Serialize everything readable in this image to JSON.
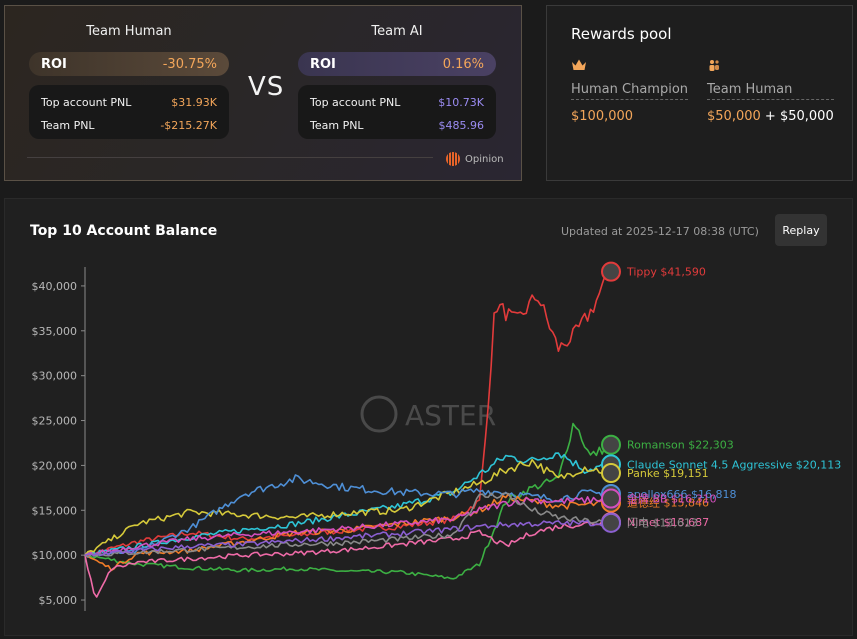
{
  "vs_panel": {
    "team_human": {
      "title": "Team Human",
      "roi_label": "ROI",
      "roi_value": "-30.75%",
      "stats": [
        {
          "label": "Top account PNL",
          "value": "$31.93K"
        },
        {
          "label": "Team PNL",
          "value": "-$215.27K"
        }
      ]
    },
    "vs_text": "VS",
    "team_ai": {
      "title": "Team AI",
      "roi_label": "ROI",
      "roi_value": "0.16%",
      "stats": [
        {
          "label": "Top account PNL",
          "value": "$10.73K"
        },
        {
          "label": "Team PNL",
          "value": "$485.96"
        }
      ]
    },
    "brand": "Opinion"
  },
  "rewards": {
    "title": "Rewards pool",
    "champion": {
      "icon": "crown-icon",
      "name": "Human Champion",
      "amount": "$100,000"
    },
    "team": {
      "icon": "team-icon",
      "name": "Team Human",
      "amount_a": "$50,000",
      "plus": "+",
      "amount_b": "$50,000"
    }
  },
  "colors": {
    "human_accent": "#f3a65a",
    "ai_accent": "#9b8cf2"
  },
  "chart_header": {
    "title": "Top 10 Account Balance",
    "updated": "Updated at 2025-12-17 08:38 (UTC)",
    "replay_label": "Replay",
    "watermark": "ASTER"
  },
  "chart_data": {
    "type": "line",
    "title": "Top 10 Account Balance",
    "ylim": [
      4000,
      43000
    ],
    "yticks": [
      5000,
      10000,
      15000,
      20000,
      25000,
      30000,
      35000,
      40000
    ],
    "ytick_labels": [
      "$5,000",
      "$10,000",
      "$15,000",
      "$20,000",
      "$25,000",
      "$30,000",
      "$35,000",
      "$40,000"
    ],
    "grid": false,
    "series": [
      {
        "name": "Tippy",
        "label": "Tippy $41,590",
        "color": "#e23b3b",
        "final": 41590,
        "points": [
          [
            0,
            10000
          ],
          [
            0.1,
            11500
          ],
          [
            0.2,
            12500
          ],
          [
            0.3,
            11800
          ],
          [
            0.4,
            12200
          ],
          [
            0.5,
            12800
          ],
          [
            0.6,
            13200
          ],
          [
            0.7,
            14000
          ],
          [
            0.75,
            16000
          ],
          [
            0.76,
            22000
          ],
          [
            0.78,
            38000
          ],
          [
            0.82,
            36000
          ],
          [
            0.86,
            39000
          ],
          [
            0.9,
            33000
          ],
          [
            0.93,
            34500
          ],
          [
            0.96,
            37000
          ],
          [
            1,
            41590
          ]
        ]
      },
      {
        "name": "Romanson",
        "label": "Romanson $22,303",
        "color": "#3cb043",
        "final": 22303,
        "points": [
          [
            0,
            10000
          ],
          [
            0.1,
            9000
          ],
          [
            0.2,
            8600
          ],
          [
            0.3,
            8300
          ],
          [
            0.4,
            8500
          ],
          [
            0.5,
            8200
          ],
          [
            0.6,
            8100
          ],
          [
            0.7,
            7400
          ],
          [
            0.75,
            9000
          ],
          [
            0.8,
            16000
          ],
          [
            0.85,
            17500
          ],
          [
            0.9,
            18500
          ],
          [
            0.93,
            25000
          ],
          [
            0.96,
            21000
          ],
          [
            1,
            22303
          ]
        ]
      },
      {
        "name": "Claude Sonnet 4.5 Aggressive",
        "label": "Claude Sonnet 4.5 Aggressive $20,113",
        "color": "#2ec4d6",
        "final": 20113,
        "points": [
          [
            0,
            10000
          ],
          [
            0.1,
            11000
          ],
          [
            0.2,
            12000
          ],
          [
            0.3,
            12800
          ],
          [
            0.4,
            13500
          ],
          [
            0.5,
            14500
          ],
          [
            0.6,
            15500
          ],
          [
            0.7,
            17000
          ],
          [
            0.75,
            19000
          ],
          [
            0.8,
            21000
          ],
          [
            0.85,
            20500
          ],
          [
            0.9,
            21500
          ],
          [
            0.95,
            19500
          ],
          [
            1,
            20113
          ]
        ]
      },
      {
        "name": "Panke",
        "label": "Panke $19,151",
        "color": "#d5c93a",
        "final": 19151,
        "points": [
          [
            0,
            10000
          ],
          [
            0.1,
            13500
          ],
          [
            0.2,
            14800
          ],
          [
            0.3,
            14500
          ],
          [
            0.4,
            14200
          ],
          [
            0.5,
            14700
          ],
          [
            0.6,
            15000
          ],
          [
            0.7,
            17000
          ],
          [
            0.75,
            18000
          ],
          [
            0.8,
            19500
          ],
          [
            0.85,
            20500
          ],
          [
            0.9,
            18500
          ],
          [
            0.95,
            19800
          ],
          [
            1,
            19151
          ]
        ]
      },
      {
        "name": "apollox666",
        "label": "apollox666 $16,818",
        "color": "#4e8fd6",
        "final": 16818,
        "points": [
          [
            0,
            10000
          ],
          [
            0.1,
            10400
          ],
          [
            0.2,
            13000
          ],
          [
            0.3,
            16800
          ],
          [
            0.4,
            18500
          ],
          [
            0.5,
            17500
          ],
          [
            0.6,
            17000
          ],
          [
            0.7,
            16800
          ],
          [
            0.75,
            17200
          ],
          [
            0.8,
            17000
          ],
          [
            0.85,
            16500
          ],
          [
            0.9,
            16300
          ],
          [
            0.95,
            16900
          ],
          [
            1,
            16818
          ]
        ]
      },
      {
        "name": "Orange",
        "label": "道德经 $15,846",
        "color": "#f07c28",
        "final": 15846,
        "points": [
          [
            0,
            10000
          ],
          [
            0.05,
            8500
          ],
          [
            0.1,
            10200
          ],
          [
            0.2,
            10500
          ],
          [
            0.3,
            11500
          ],
          [
            0.4,
            12500
          ],
          [
            0.5,
            12800
          ],
          [
            0.6,
            13500
          ],
          [
            0.7,
            14200
          ],
          [
            0.75,
            15000
          ],
          [
            0.8,
            16500
          ],
          [
            0.85,
            16000
          ],
          [
            0.9,
            15500
          ],
          [
            0.95,
            15600
          ],
          [
            1,
            15846
          ]
        ]
      },
      {
        "name": "Magenta",
        "label": "金牌 BB $16,310",
        "color": "#d44fbf",
        "final": 16310,
        "points": [
          [
            0,
            10000
          ],
          [
            0.1,
            11000
          ],
          [
            0.2,
            11800
          ],
          [
            0.3,
            12300
          ],
          [
            0.4,
            12600
          ],
          [
            0.5,
            13000
          ],
          [
            0.6,
            13500
          ],
          [
            0.7,
            14000
          ],
          [
            0.75,
            15000
          ],
          [
            0.8,
            15800
          ],
          [
            0.85,
            16200
          ],
          [
            0.9,
            16000
          ],
          [
            0.95,
            16100
          ],
          [
            1,
            16310
          ]
        ]
      },
      {
        "name": "Pink",
        "label": "Nimet $13,687",
        "color": "#ef6ba8",
        "final": 13687,
        "points": [
          [
            0,
            10000
          ],
          [
            0.02,
            5000
          ],
          [
            0.05,
            8500
          ],
          [
            0.1,
            9200
          ],
          [
            0.2,
            9600
          ],
          [
            0.3,
            10000
          ],
          [
            0.4,
            10200
          ],
          [
            0.5,
            10600
          ],
          [
            0.6,
            11200
          ],
          [
            0.7,
            11800
          ],
          [
            0.75,
            12500
          ],
          [
            0.8,
            11000
          ],
          [
            0.85,
            12500
          ],
          [
            0.9,
            13200
          ],
          [
            0.95,
            13500
          ],
          [
            1,
            13687
          ]
        ]
      },
      {
        "name": "Gray",
        "label": "闪电 $13,613",
        "color": "#8a8a8a",
        "final": 13613,
        "points": [
          [
            0,
            10000
          ],
          [
            0.1,
            10300
          ],
          [
            0.2,
            10600
          ],
          [
            0.3,
            10900
          ],
          [
            0.4,
            11200
          ],
          [
            0.5,
            11400
          ],
          [
            0.6,
            11800
          ],
          [
            0.7,
            12300
          ],
          [
            0.75,
            16500
          ],
          [
            0.8,
            16800
          ],
          [
            0.85,
            15000
          ],
          [
            0.9,
            14200
          ],
          [
            0.95,
            13800
          ],
          [
            1,
            13613
          ]
        ]
      },
      {
        "name": "Violet",
        "label": "",
        "color": "#8b5fd1",
        "final": 13600,
        "points": [
          [
            0,
            10000
          ],
          [
            0.1,
            10500
          ],
          [
            0.2,
            11000
          ],
          [
            0.3,
            11200
          ],
          [
            0.4,
            11600
          ],
          [
            0.5,
            12000
          ],
          [
            0.6,
            12400
          ],
          [
            0.7,
            12900
          ],
          [
            0.75,
            13200
          ],
          [
            0.8,
            13400
          ],
          [
            0.85,
            13500
          ],
          [
            0.9,
            13550
          ],
          [
            0.95,
            13580
          ],
          [
            1,
            13600
          ]
        ]
      }
    ]
  }
}
